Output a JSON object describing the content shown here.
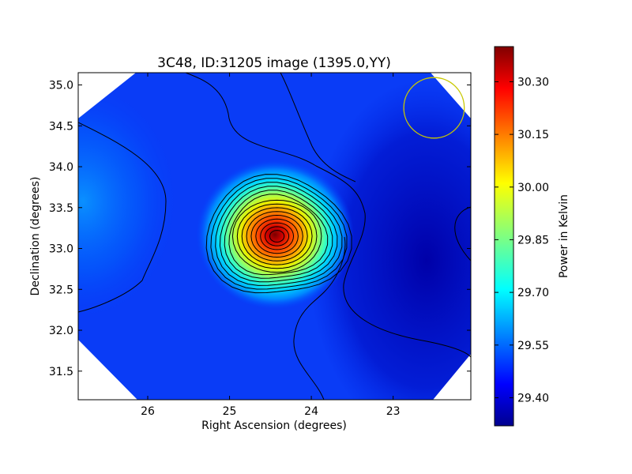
{
  "chart_data": {
    "type": "heatmap",
    "title": "3C48, ID:31205 image (1395.0,YY)",
    "xlabel": "Right Ascension (degrees)",
    "ylabel": "Declination (degrees)",
    "xlim": [
      26.85,
      22.05
    ],
    "ylim": [
      31.15,
      35.15
    ],
    "x_ticks": [
      26,
      25,
      24,
      23
    ],
    "x_tick_labels": [
      "26",
      "25",
      "24",
      "23"
    ],
    "y_ticks": [
      31.5,
      32.0,
      32.5,
      33.0,
      33.5,
      34.0,
      34.5,
      35.0
    ],
    "y_tick_labels": [
      "31.5",
      "32.0",
      "32.5",
      "33.0",
      "33.5",
      "34.0",
      "34.5",
      "35.0"
    ],
    "colormap": "jet",
    "colorbar": {
      "label": "Power in Kelvin",
      "range": [
        29.32,
        30.4
      ],
      "ticks": [
        29.4,
        29.55,
        29.7,
        29.85,
        30.0,
        30.15,
        30.3
      ],
      "tick_labels": [
        "29.40",
        "29.55",
        "29.70",
        "29.85",
        "30.00",
        "30.15",
        "30.30"
      ]
    },
    "peak": {
      "ra": 24.42,
      "dec": 33.15,
      "value": 30.38
    },
    "background_level": 29.47,
    "contour_count": 15,
    "beam_circle": {
      "ra": 22.5,
      "dec": 34.72,
      "radius_deg": 0.37,
      "color": "#c8c800"
    }
  }
}
